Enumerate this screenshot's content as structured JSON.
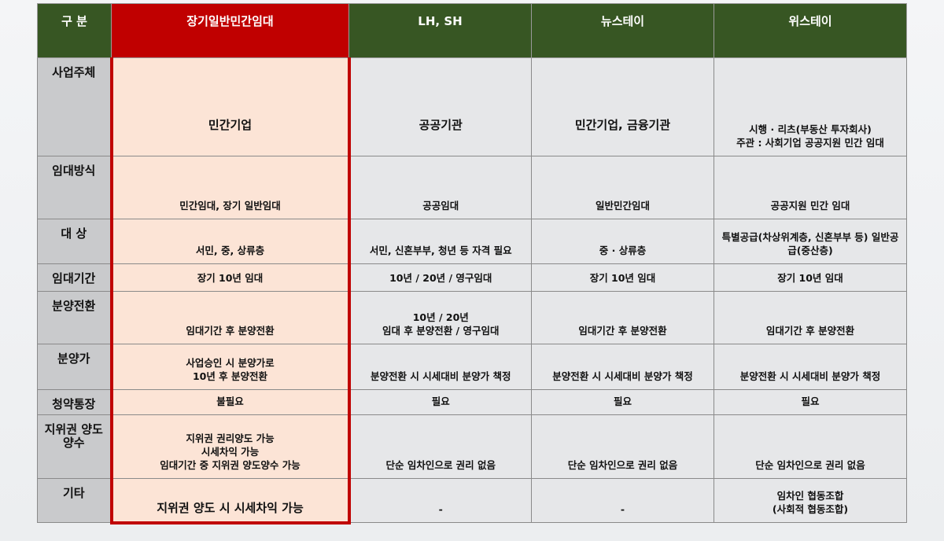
{
  "header": [
    "구 분",
    "장기일반민간임대",
    "LH, SH",
    "뉴스테이",
    "위스테이"
  ],
  "highlight_color": "#c00000",
  "header_color": "#375623",
  "rows": [
    {
      "label": "사업주체",
      "cells": [
        "민간기업",
        "공공기관",
        "민간기업, 금융기관",
        "시행 · 리츠(부동산 투자회사)\n주관 : 사회기업 공공지원 민간 임대"
      ]
    },
    {
      "label": "임대방식",
      "cells": [
        "민간임대, 장기 일반임대",
        "공공임대",
        "일반민간임대",
        "공공지원 민간 임대"
      ]
    },
    {
      "label": "대 상",
      "cells": [
        "서민, 중, 상류층",
        "서민, 신혼부부, 청년 등 자격 필요",
        "중 · 상류층",
        "특별공급(차상위계층, 신혼부부 등) 일반공급(중산층)"
      ]
    },
    {
      "label": "임대기간",
      "cells": [
        "장기 10년 임대",
        "10년 / 20년 / 영구임대",
        "장기 10년 임대",
        "장기 10년 임대"
      ]
    },
    {
      "label": "분양전환",
      "cells": [
        "임대기간 후 분양전환",
        "10년 / 20년\n임대 후 분양전환 / 영구임대",
        "임대기간 후 분양전환",
        "임대기간 후 분양전환"
      ]
    },
    {
      "label": "분양가",
      "cells": [
        "사업승인 시 분양가로\n10년 후 분양전환",
        "분양전환 시 시세대비 분양가 책정",
        "분양전환 시 시세대비 분양가 책정",
        "분양전환 시 시세대비 분양가 책정"
      ]
    },
    {
      "label": "청약통장",
      "cells": [
        "불필요",
        "필요",
        "필요",
        "필요"
      ]
    },
    {
      "label": "지위권 양도양수",
      "cells": [
        "지위권 권리양도 가능\n시세차익 가능\n임대기간 중 지위권 양도양수 가능",
        "단순 임차인으로 권리 없음",
        "단순 임차인으로 권리 없음",
        "단순 임차인으로 권리 없음"
      ]
    },
    {
      "label": "기타",
      "cells": [
        "지위권 양도 시 시세차익 가능",
        "-",
        "-",
        "임차인 협동조합\n(사회적 협동조합)"
      ]
    }
  ]
}
